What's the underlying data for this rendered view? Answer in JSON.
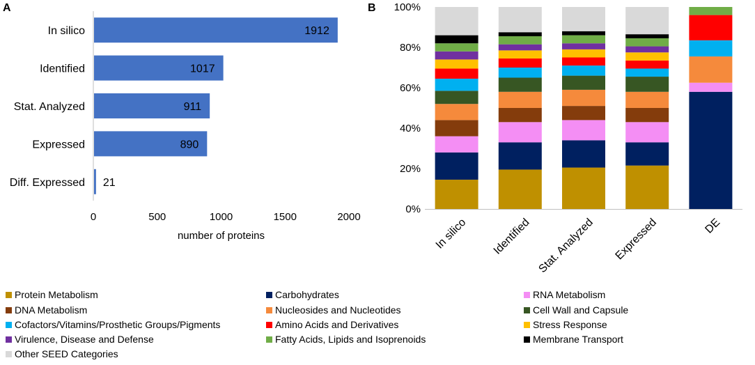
{
  "chart_data": [
    {
      "panel": "A",
      "type": "bar",
      "orientation": "horizontal",
      "categories": [
        "In silico",
        "Identified",
        "Stat. Analyzed",
        "Expressed",
        "Diff. Expressed"
      ],
      "values": [
        1912,
        1017,
        911,
        890,
        21
      ],
      "value_labels": [
        "1912",
        "1017",
        "911",
        "890",
        "21"
      ],
      "color": "#4472C4",
      "xlabel": "number of proteins",
      "xlim": [
        0,
        2000
      ],
      "xticks": [
        0,
        500,
        1000,
        1500,
        2000
      ],
      "xtick_labels": [
        "0",
        "500",
        "1000",
        "1500",
        "2000"
      ],
      "grid": false
    },
    {
      "panel": "B",
      "type": "bar",
      "stacked": true,
      "percent": true,
      "categories": [
        "In silico",
        "Identified",
        "Stat. Analyzed",
        "Expressed",
        "DE"
      ],
      "ylim": [
        0,
        100
      ],
      "yticks": [
        0,
        20,
        40,
        60,
        80,
        100
      ],
      "ytick_labels": [
        "0%",
        "20%",
        "40%",
        "60%",
        "80%",
        "100%"
      ],
      "grid": false,
      "series": [
        {
          "name": "Protein Metabolism",
          "color": "#BF9000",
          "values": [
            14.5,
            19.5,
            20.5,
            21.5,
            0
          ]
        },
        {
          "name": "Carbohydrates",
          "color": "#002060",
          "values": [
            13.5,
            13.5,
            13.5,
            11.5,
            58
          ]
        },
        {
          "name": "RNA Metabolism",
          "color": "#F48EF4",
          "values": [
            8,
            10,
            10,
            10,
            4.5
          ]
        },
        {
          "name": "DNA Metabolism",
          "color": "#843C0C",
          "values": [
            8,
            7,
            7,
            7,
            0
          ]
        },
        {
          "name": "Nucleosides and Nucleotides",
          "color": "#F58A3C",
          "values": [
            8,
            8,
            8,
            8,
            13
          ]
        },
        {
          "name": "Cell Wall and Capsule",
          "color": "#375623",
          "values": [
            6.5,
            7,
            7,
            7.5,
            0
          ]
        },
        {
          "name": "Cofactors/Vitamins/Prosthetic Groups/Pigments",
          "color": "#00B0F0",
          "values": [
            6,
            5,
            5,
            4,
            8
          ]
        },
        {
          "name": "Amino Acids and Derivatives",
          "color": "#FF0000",
          "values": [
            5,
            4.5,
            4,
            4,
            12.5
          ]
        },
        {
          "name": "Stress Response",
          "color": "#FFC000",
          "values": [
            4.5,
            4,
            4,
            4,
            0
          ]
        },
        {
          "name": "Virulence, Disease and Defense",
          "color": "#7030A0",
          "values": [
            4,
            3,
            3,
            3,
            0
          ]
        },
        {
          "name": "Fatty Acids, Lipids and Isoprenoids",
          "color": "#70AD47",
          "values": [
            4,
            4,
            4,
            4,
            4
          ]
        },
        {
          "name": "Membrane Transport",
          "color": "#000000",
          "values": [
            4,
            2,
            2,
            2,
            0
          ]
        },
        {
          "name": "Other SEED Categories",
          "color": "#D9D9D9",
          "values": [
            14,
            12.5,
            12,
            13.5,
            0
          ]
        }
      ]
    }
  ],
  "labels": {
    "panel_a": "A",
    "panel_b": "B"
  }
}
